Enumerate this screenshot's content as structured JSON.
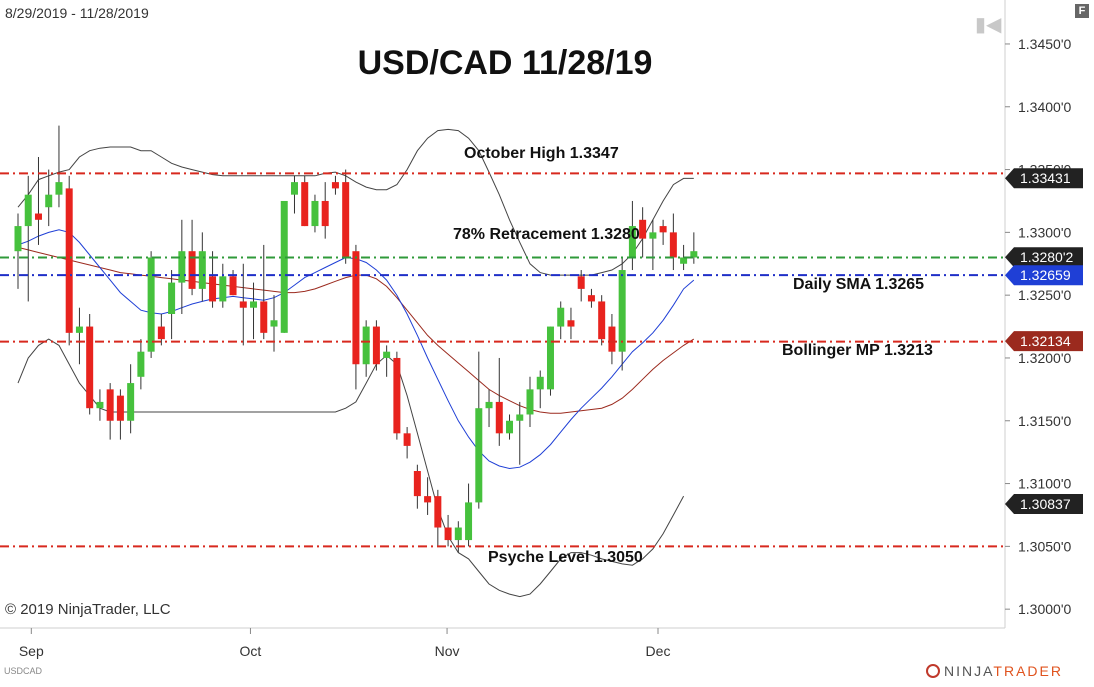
{
  "header": {
    "date_range": "8/29/2019 - 11/28/2019",
    "title": "USD/CAD 11/28/19",
    "f_button": "F"
  },
  "footer": {
    "copyright": "© 2019 NinjaTrader, LLC",
    "symbol": "USDCAD",
    "logo_left": "NINJA",
    "logo_right": "TRADER"
  },
  "colors": {
    "bull": "#46c13d",
    "bear": "#e8231e",
    "sma": "#1f3fd6",
    "bollinger_mid": "#9b2a1e",
    "bollinger_band": "#444444",
    "resistance": "#d8291e",
    "retracement": "#2f9a3a",
    "sma_line": "#1f2fc8"
  },
  "annotations": [
    {
      "id": "october-high",
      "text": "October High 1.3347",
      "price": 1.3347
    },
    {
      "id": "retracement",
      "text": "78% Retracement 1.3280",
      "price": 1.328
    },
    {
      "id": "daily-sma",
      "text": "Daily SMA 1.3265",
      "price": 1.3265
    },
    {
      "id": "bollinger-mp",
      "text": "Bollinger MP 1.3213",
      "price": 1.3213
    },
    {
      "id": "psyche-level",
      "text": "Psyche Level 1.3050",
      "price": 1.305
    }
  ],
  "chart_data": {
    "type": "candlestick",
    "title": "USD/CAD 11/28/19",
    "x_range": [
      "8/29/2019",
      "11/28/2019"
    ],
    "ylim": [
      1.2985,
      1.3485
    ],
    "y_ticks": [
      "1.3000'0",
      "1.3050'0",
      "1.3100'0",
      "1.3150'0",
      "1.3200'0",
      "1.3250'0",
      "1.3300'0",
      "1.3350'0",
      "1.3400'0",
      "1.3450'0"
    ],
    "y_tick_values": [
      1.3,
      1.305,
      1.31,
      1.315,
      1.32,
      1.325,
      1.33,
      1.335,
      1.34,
      1.345
    ],
    "x_ticks": [
      {
        "label": "Sep",
        "bar": 1.3
      },
      {
        "label": "Oct",
        "bar": 22.7
      },
      {
        "label": "Nov",
        "bar": 41.9
      },
      {
        "label": "Dec",
        "bar": 62.5
      }
    ],
    "price_badges": [
      {
        "text": "1.33431",
        "price": 1.33431,
        "color": "#222222"
      },
      {
        "text": "1.3280'2",
        "price": 1.32802,
        "color": "#222222"
      },
      {
        "text": "1.32659",
        "price": 1.32659,
        "color": "#1f3fd6"
      },
      {
        "text": "1.32134",
        "price": 1.32134,
        "color": "#9b2a1e"
      },
      {
        "text": "1.30837",
        "price": 1.30837,
        "color": "#222222"
      }
    ],
    "horizontal_lines": [
      {
        "price": 1.3347,
        "color": "#d8291e"
      },
      {
        "price": 1.328,
        "color": "#2f9a3a"
      },
      {
        "price": 1.3266,
        "color": "#1f2fc8"
      },
      {
        "price": 1.3213,
        "color": "#d8291e"
      },
      {
        "price": 1.305,
        "color": "#d8291e"
      }
    ],
    "candles": [
      {
        "o": 1.3285,
        "h": 1.3315,
        "l": 1.3255,
        "c": 1.3305
      },
      {
        "o": 1.3305,
        "h": 1.3345,
        "l": 1.3245,
        "c": 1.333
      },
      {
        "o": 1.3315,
        "h": 1.336,
        "l": 1.329,
        "c": 1.331
      },
      {
        "o": 1.332,
        "h": 1.335,
        "l": 1.3305,
        "c": 1.333
      },
      {
        "o": 1.333,
        "h": 1.3385,
        "l": 1.332,
        "c": 1.334
      },
      {
        "o": 1.3335,
        "h": 1.3345,
        "l": 1.321,
        "c": 1.322
      },
      {
        "o": 1.322,
        "h": 1.324,
        "l": 1.3195,
        "c": 1.3225
      },
      {
        "o": 1.3225,
        "h": 1.3235,
        "l": 1.3155,
        "c": 1.316
      },
      {
        "o": 1.316,
        "h": 1.3175,
        "l": 1.315,
        "c": 1.3165
      },
      {
        "o": 1.3175,
        "h": 1.318,
        "l": 1.3135,
        "c": 1.315
      },
      {
        "o": 1.317,
        "h": 1.3175,
        "l": 1.3135,
        "c": 1.315
      },
      {
        "o": 1.315,
        "h": 1.3195,
        "l": 1.314,
        "c": 1.318
      },
      {
        "o": 1.3185,
        "h": 1.3215,
        "l": 1.3175,
        "c": 1.3205
      },
      {
        "o": 1.3205,
        "h": 1.3285,
        "l": 1.32,
        "c": 1.328
      },
      {
        "o": 1.3225,
        "h": 1.3235,
        "l": 1.321,
        "c": 1.3215
      },
      {
        "o": 1.3235,
        "h": 1.327,
        "l": 1.3215,
        "c": 1.326
      },
      {
        "o": 1.326,
        "h": 1.331,
        "l": 1.3235,
        "c": 1.3285
      },
      {
        "o": 1.3285,
        "h": 1.331,
        "l": 1.325,
        "c": 1.3255
      },
      {
        "o": 1.3255,
        "h": 1.33,
        "l": 1.3245,
        "c": 1.3285
      },
      {
        "o": 1.3265,
        "h": 1.3285,
        "l": 1.324,
        "c": 1.3245
      },
      {
        "o": 1.3245,
        "h": 1.3275,
        "l": 1.324,
        "c": 1.3265
      },
      {
        "o": 1.3265,
        "h": 1.327,
        "l": 1.325,
        "c": 1.325
      },
      {
        "o": 1.3245,
        "h": 1.3275,
        "l": 1.321,
        "c": 1.324
      },
      {
        "o": 1.324,
        "h": 1.326,
        "l": 1.3215,
        "c": 1.3245
      },
      {
        "o": 1.3245,
        "h": 1.329,
        "l": 1.3215,
        "c": 1.322
      },
      {
        "o": 1.3225,
        "h": 1.325,
        "l": 1.3205,
        "c": 1.323
      },
      {
        "o": 1.322,
        "h": 1.3325,
        "l": 1.322,
        "c": 1.3325
      },
      {
        "o": 1.333,
        "h": 1.3345,
        "l": 1.3315,
        "c": 1.334
      },
      {
        "o": 1.334,
        "h": 1.3345,
        "l": 1.3305,
        "c": 1.3305
      },
      {
        "o": 1.3305,
        "h": 1.333,
        "l": 1.33,
        "c": 1.3325
      },
      {
        "o": 1.3325,
        "h": 1.334,
        "l": 1.3295,
        "c": 1.3305
      },
      {
        "o": 1.334,
        "h": 1.3345,
        "l": 1.333,
        "c": 1.3335
      },
      {
        "o": 1.334,
        "h": 1.335,
        "l": 1.3275,
        "c": 1.328
      },
      {
        "o": 1.3285,
        "h": 1.329,
        "l": 1.3175,
        "c": 1.3195
      },
      {
        "o": 1.3195,
        "h": 1.323,
        "l": 1.3185,
        "c": 1.3225
      },
      {
        "o": 1.3225,
        "h": 1.323,
        "l": 1.319,
        "c": 1.3195
      },
      {
        "o": 1.32,
        "h": 1.321,
        "l": 1.3185,
        "c": 1.3205
      },
      {
        "o": 1.32,
        "h": 1.3205,
        "l": 1.3135,
        "c": 1.314
      },
      {
        "o": 1.314,
        "h": 1.3145,
        "l": 1.312,
        "c": 1.313
      },
      {
        "o": 1.311,
        "h": 1.3115,
        "l": 1.308,
        "c": 1.309
      },
      {
        "o": 1.309,
        "h": 1.3105,
        "l": 1.3075,
        "c": 1.3085
      },
      {
        "o": 1.309,
        "h": 1.3095,
        "l": 1.305,
        "c": 1.3065
      },
      {
        "o": 1.3065,
        "h": 1.3075,
        "l": 1.305,
        "c": 1.3055
      },
      {
        "o": 1.3055,
        "h": 1.307,
        "l": 1.3045,
        "c": 1.3065
      },
      {
        "o": 1.3055,
        "h": 1.31,
        "l": 1.305,
        "c": 1.3085
      },
      {
        "o": 1.3085,
        "h": 1.3205,
        "l": 1.308,
        "c": 1.316
      },
      {
        "o": 1.316,
        "h": 1.3175,
        "l": 1.3145,
        "c": 1.3165
      },
      {
        "o": 1.3165,
        "h": 1.32,
        "l": 1.313,
        "c": 1.314
      },
      {
        "o": 1.314,
        "h": 1.3155,
        "l": 1.3135,
        "c": 1.315
      },
      {
        "o": 1.315,
        "h": 1.3165,
        "l": 1.3115,
        "c": 1.3155
      },
      {
        "o": 1.3155,
        "h": 1.3185,
        "l": 1.3145,
        "c": 1.3175
      },
      {
        "o": 1.3175,
        "h": 1.319,
        "l": 1.316,
        "c": 1.3185
      },
      {
        "o": 1.3175,
        "h": 1.3225,
        "l": 1.317,
        "c": 1.3225
      },
      {
        "o": 1.3225,
        "h": 1.3245,
        "l": 1.3215,
        "c": 1.324
      },
      {
        "o": 1.323,
        "h": 1.324,
        "l": 1.3215,
        "c": 1.3225
      },
      {
        "o": 1.3265,
        "h": 1.327,
        "l": 1.3245,
        "c": 1.3255
      },
      {
        "o": 1.325,
        "h": 1.3255,
        "l": 1.324,
        "c": 1.3245
      },
      {
        "o": 1.3245,
        "h": 1.325,
        "l": 1.321,
        "c": 1.3215
      },
      {
        "o": 1.3225,
        "h": 1.3235,
        "l": 1.3195,
        "c": 1.3205
      },
      {
        "o": 1.3205,
        "h": 1.328,
        "l": 1.319,
        "c": 1.327
      },
      {
        "o": 1.328,
        "h": 1.3325,
        "l": 1.327,
        "c": 1.3305
      },
      {
        "o": 1.331,
        "h": 1.332,
        "l": 1.328,
        "c": 1.3295
      },
      {
        "o": 1.3295,
        "h": 1.331,
        "l": 1.327,
        "c": 1.33
      },
      {
        "o": 1.3305,
        "h": 1.331,
        "l": 1.329,
        "c": 1.33
      },
      {
        "o": 1.33,
        "h": 1.3315,
        "l": 1.327,
        "c": 1.328
      },
      {
        "o": 1.3275,
        "h": 1.329,
        "l": 1.327,
        "c": 1.328
      },
      {
        "o": 1.328,
        "h": 1.33,
        "l": 1.3275,
        "c": 1.3285
      }
    ],
    "sma": [
      1.329,
      1.3293,
      1.3297,
      1.33,
      1.3302,
      1.33,
      1.3292,
      1.3282,
      1.3272,
      1.3262,
      1.3252,
      1.3245,
      1.3238,
      1.3236,
      1.3235,
      1.3237,
      1.324,
      1.3243,
      1.3245,
      1.3247,
      1.3248,
      1.3249,
      1.3248,
      1.3247,
      1.3246,
      1.3248,
      1.3252,
      1.3258,
      1.3264,
      1.3268,
      1.3272,
      1.3276,
      1.328,
      1.3279,
      1.3276,
      1.327,
      1.3262,
      1.325,
      1.3235,
      1.3218,
      1.32,
      1.3183,
      1.3166,
      1.315,
      1.3137,
      1.3126,
      1.3118,
      1.3114,
      1.3112,
      1.3113,
      1.3117,
      1.3123,
      1.3131,
      1.3141,
      1.3151,
      1.316,
      1.3168,
      1.3176,
      1.3185,
      1.3195,
      1.3205,
      1.3212,
      1.322,
      1.323,
      1.3242,
      1.3255,
      1.3262
    ],
    "bollinger_mid": [
      1.3288,
      1.3286,
      1.3284,
      1.3282,
      1.328,
      1.3278,
      1.3276,
      1.3274,
      1.3272,
      1.327,
      1.3268,
      1.3267,
      1.3266,
      1.3265,
      1.3264,
      1.3263,
      1.3262,
      1.3261,
      1.326,
      1.3259,
      1.3258,
      1.3257,
      1.3256,
      1.3255,
      1.3254,
      1.3253,
      1.3252,
      1.3252,
      1.3253,
      1.3255,
      1.3258,
      1.3261,
      1.3264,
      1.3266,
      1.3266,
      1.3263,
      1.3257,
      1.3248,
      1.3238,
      1.3228,
      1.3218,
      1.321,
      1.3203,
      1.3196,
      1.3189,
      1.3182,
      1.3175,
      1.317,
      1.3166,
      1.3162,
      1.3159,
      1.3157,
      1.3156,
      1.3156,
      1.3157,
      1.3158,
      1.3159,
      1.316,
      1.3163,
      1.3168,
      1.3175,
      1.3183,
      1.3191,
      1.3198,
      1.3204,
      1.321,
      1.3215
    ],
    "bollinger_upper": [
      1.332,
      1.333,
      1.3342,
      1.3345,
      1.3348,
      1.335,
      1.336,
      1.3365,
      1.3367,
      1.3368,
      1.3368,
      1.3368,
      1.3365,
      1.3365,
      1.336,
      1.3355,
      1.3352,
      1.335,
      1.3348,
      1.3346,
      1.3345,
      1.3345,
      1.3345,
      1.3345,
      1.3345,
      1.3345,
      1.3345,
      1.3345,
      1.3345,
      1.3345,
      1.3347,
      1.3348,
      1.3345,
      1.334,
      1.3336,
      1.3334,
      1.3334,
      1.3338,
      1.335,
      1.3365,
      1.3375,
      1.3381,
      1.3382,
      1.3381,
      1.3375,
      1.3365,
      1.3348,
      1.333,
      1.331,
      1.3292,
      1.3275,
      1.3268,
      1.3266,
      1.3266,
      1.3266,
      1.3266,
      1.3266,
      1.3268,
      1.327,
      1.3275,
      1.3283,
      1.3295,
      1.331,
      1.3325,
      1.3338,
      1.3343,
      1.3343
    ],
    "bollinger_lower": [
      1.318,
      1.32,
      1.321,
      1.3215,
      1.321,
      1.3195,
      1.318,
      1.317,
      1.316,
      1.3157,
      1.3157,
      1.3157,
      1.3157,
      1.3157,
      1.3157,
      1.3157,
      1.3157,
      1.3157,
      1.3157,
      1.3157,
      1.3157,
      1.3157,
      1.3157,
      1.3157,
      1.3157,
      1.3157,
      1.3157,
      1.3157,
      1.3157,
      1.3157,
      1.3157,
      1.3157,
      1.316,
      1.3165,
      1.318,
      1.3195,
      1.3202,
      1.3195,
      1.317,
      1.314,
      1.311,
      1.308,
      1.3058,
      1.3045,
      1.304,
      1.303,
      1.302,
      1.3015,
      1.3012,
      1.301,
      1.3012,
      1.302,
      1.303,
      1.304,
      1.3045,
      1.3045,
      1.3043,
      1.304,
      1.3038,
      1.3036,
      1.3035,
      1.304,
      1.3048,
      1.306,
      1.3075,
      1.309
    ]
  }
}
